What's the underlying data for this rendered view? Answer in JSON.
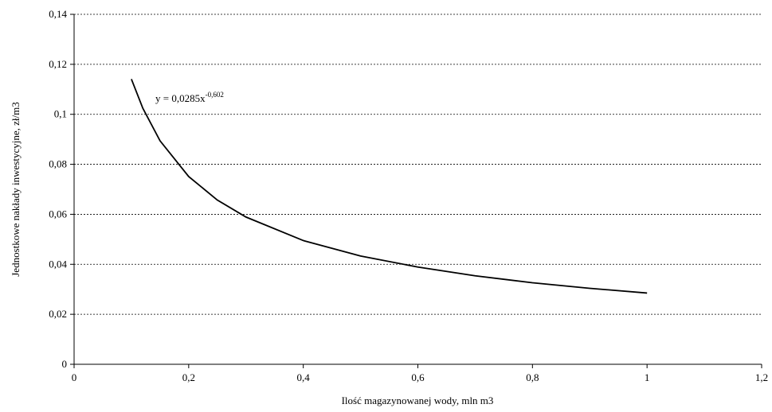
{
  "chart_data": {
    "type": "line",
    "title": "",
    "xlabel": "Ilość magazynowanej wody, mln m3",
    "ylabel": "Jednostkowe nakłady inwestycyjne, zł/m3",
    "xlim": [
      0,
      1.2
    ],
    "ylim": [
      0,
      0.14
    ],
    "x_ticks": [
      0,
      0.2,
      0.4,
      0.6,
      0.8,
      1,
      1.2
    ],
    "x_tick_labels": [
      "0",
      "0,2",
      "0,4",
      "0,6",
      "0,8",
      "1",
      "1,2"
    ],
    "y_ticks": [
      0,
      0.02,
      0.04,
      0.06,
      0.08,
      0.1,
      0.12,
      0.14
    ],
    "y_tick_labels": [
      "0",
      "0,02",
      "0,04",
      "0,06",
      "0,08",
      "0,1",
      "0,12",
      "0,14"
    ],
    "grid": "horizontal-dashed",
    "series": [
      {
        "x": [
          0.1,
          0.12,
          0.15,
          0.2,
          0.25,
          0.3,
          0.4,
          0.5,
          0.6,
          0.7,
          0.8,
          0.9,
          1.0
        ],
        "y": [
          0.1141,
          0.1024,
          0.0894,
          0.0751,
          0.0657,
          0.0589,
          0.0495,
          0.0433,
          0.0389,
          0.0354,
          0.0326,
          0.0304,
          0.0285
        ]
      }
    ],
    "annotation": {
      "equation_prefix": "y = 0,0285x",
      "equation_exponent": "-0,602"
    }
  }
}
